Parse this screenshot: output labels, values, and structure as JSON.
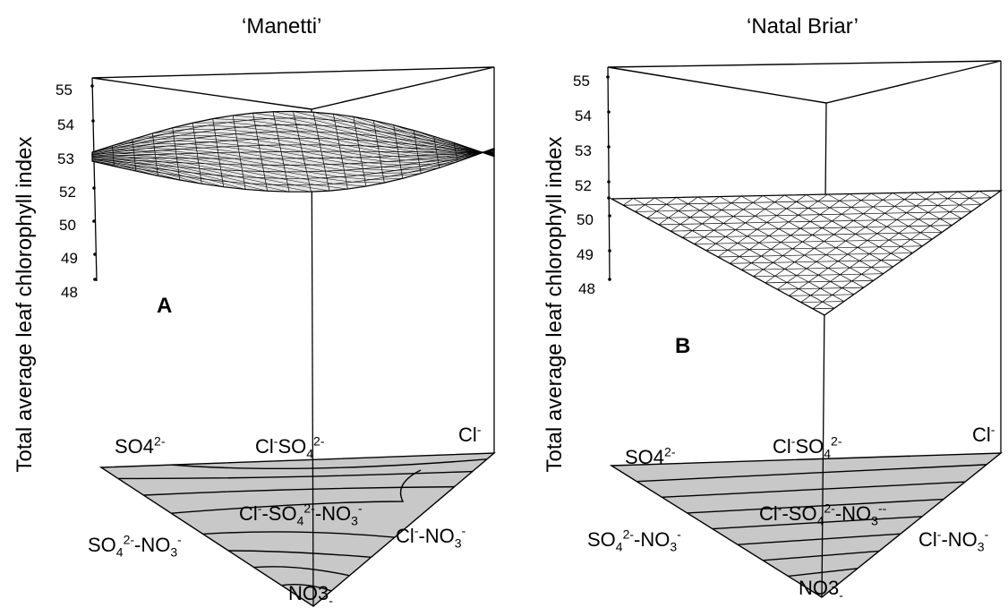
{
  "chart_data": [
    {
      "type": "surface",
      "title": "‘Manetti’",
      "ylabel": "Total average leaf chlorophyll index",
      "panel_letter": "A",
      "z_ticks": [
        "55",
        "54",
        "53",
        "52",
        "50",
        "49",
        "48"
      ],
      "ternary_vertices": {
        "left": {
          "ion": "SO4",
          "charge": "2-"
        },
        "back": {
          "ion": "Cl",
          "charge": "-"
        },
        "front": {
          "ion": "NO3",
          "charge": "-"
        }
      },
      "mixture_labels": {
        "cl_so4": [
          "Cl",
          "-",
          "SO",
          "4",
          "2-"
        ],
        "so4_no3": [
          "SO",
          "4",
          "2-",
          "-NO",
          "3",
          "-"
        ],
        "cl_no3": [
          "Cl",
          "-",
          "-NO",
          "3",
          "-"
        ],
        "cl_so4_no3": [
          "Cl",
          "-",
          "-SO",
          "4",
          "2-",
          "-NO",
          "3",
          "-"
        ]
      },
      "surface": {
        "shape": "curved",
        "range": [
          52,
          53.4
        ]
      },
      "colors": {
        "surface_fill": "#e6e6e6",
        "base_fill": "#c8c8c8",
        "line": "#000000"
      }
    },
    {
      "type": "surface",
      "title": "‘Natal Briar’",
      "ylabel": "Total average leaf chlorophyll index",
      "panel_letter": "B",
      "z_ticks": [
        "55",
        "54",
        "53",
        "52",
        "51",
        "50",
        "49",
        "48"
      ],
      "ternary_vertices": {
        "left": {
          "ion": "SO4",
          "charge": "2-"
        },
        "back": {
          "ion": "Cl",
          "charge": "-"
        },
        "front": {
          "ion": "NO3",
          "charge": "-"
        }
      },
      "mixture_labels": {
        "cl_so4": [
          "Cl",
          "-",
          "SO",
          "4",
          "2-"
        ],
        "so4_no3": [
          "SO",
          "4",
          "2-",
          "-NO",
          "3",
          "-"
        ],
        "cl_no3": [
          "Cl",
          "-",
          "-NO",
          "3",
          "-"
        ],
        "cl_so4_no3": [
          "Cl",
          "-",
          "-SO",
          "4",
          "2-",
          "-NO",
          "3",
          "--"
        ]
      },
      "surface": {
        "shape": "planar",
        "range": [
          48.5,
          51.5
        ]
      },
      "colors": {
        "surface_fill": "#ffffff",
        "base_fill": "#c8c8c8",
        "line": "#000000"
      }
    }
  ]
}
